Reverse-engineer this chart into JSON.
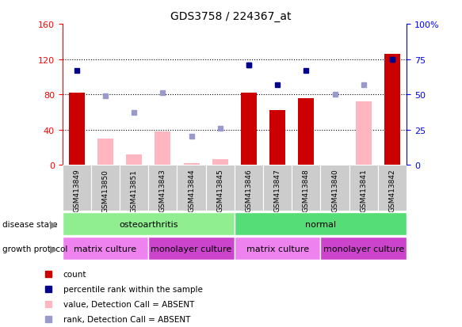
{
  "title": "GDS3758 / 224367_at",
  "samples": [
    "GSM413849",
    "GSM413850",
    "GSM413851",
    "GSM413843",
    "GSM413844",
    "GSM413845",
    "GSM413846",
    "GSM413847",
    "GSM413848",
    "GSM413840",
    "GSM413841",
    "GSM413842"
  ],
  "count_values": [
    82,
    null,
    null,
    null,
    null,
    null,
    82,
    62,
    76,
    null,
    null,
    126
  ],
  "count_absent": [
    null,
    30,
    12,
    38,
    2,
    6,
    null,
    null,
    null,
    null,
    72,
    null
  ],
  "rank_present_pct": [
    67,
    null,
    null,
    null,
    null,
    null,
    71,
    null,
    67,
    null,
    null,
    75
  ],
  "rank_absent_pct": [
    null,
    49,
    37,
    51,
    20,
    26,
    null,
    null,
    null,
    50,
    57,
    null
  ],
  "percentile_present_pct": [
    null,
    null,
    null,
    null,
    null,
    null,
    71,
    57,
    null,
    null,
    null,
    75
  ],
  "count_bar_color": "#cc0000",
  "count_absent_color": "#ffb6c1",
  "rank_present_color": "#00008b",
  "rank_absent_color": "#9999cc",
  "left_ylim": [
    0,
    160
  ],
  "right_ylim": [
    0,
    100
  ],
  "left_yticks": [
    0,
    40,
    80,
    120,
    160
  ],
  "right_yticks": [
    0,
    25,
    50,
    75,
    100
  ],
  "left_yticklabels": [
    "0",
    "40",
    "80",
    "120",
    "160"
  ],
  "right_yticklabels": [
    "0",
    "25",
    "50",
    "75",
    "100%"
  ],
  "disease_state_groups": [
    {
      "label": "osteoarthritis",
      "start": 0,
      "end": 6,
      "color": "#90ee90"
    },
    {
      "label": "normal",
      "start": 6,
      "end": 12,
      "color": "#55dd77"
    }
  ],
  "growth_protocol_groups": [
    {
      "label": "matrix culture",
      "start": 0,
      "end": 3,
      "color": "#ee82ee"
    },
    {
      "label": "monolayer culture",
      "start": 3,
      "end": 6,
      "color": "#cc44cc"
    },
    {
      "label": "matrix culture",
      "start": 6,
      "end": 9,
      "color": "#ee82ee"
    },
    {
      "label": "monolayer culture",
      "start": 9,
      "end": 12,
      "color": "#cc44cc"
    }
  ],
  "legend_items": [
    {
      "label": "count",
      "color": "#cc0000",
      "marker": "s"
    },
    {
      "label": "percentile rank within the sample",
      "color": "#00008b",
      "marker": "s"
    },
    {
      "label": "value, Detection Call = ABSENT",
      "color": "#ffb6c1",
      "marker": "s"
    },
    {
      "label": "rank, Detection Call = ABSENT",
      "color": "#9999cc",
      "marker": "s"
    }
  ]
}
